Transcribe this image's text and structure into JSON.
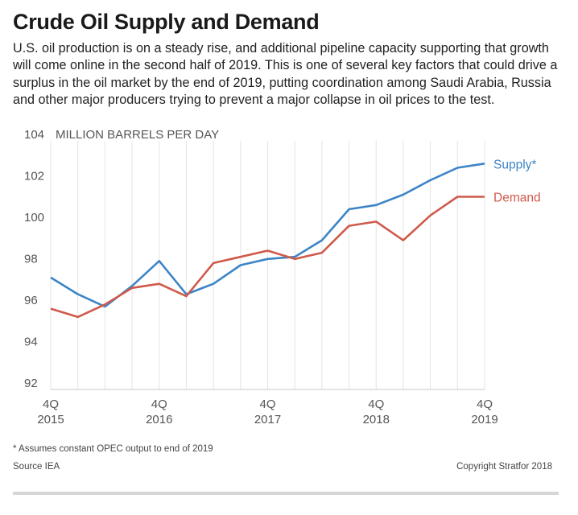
{
  "title": "Crude Oil Supply and Demand",
  "subtitle": "U.S. oil production is on a steady rise, and additional pipeline capacity supporting that growth will come online in the second half of 2019. This is one of several key factors that could drive a surplus in the oil market by the end of 2019, putting coordination among Saudi Arabia, Russia and other major producers trying to prevent a major collapse in oil prices to the test.",
  "chart_data": {
    "type": "line",
    "ylabel": "MILLION BARRELS PER DAY",
    "ylim": [
      92,
      104
    ],
    "yticks": [
      92,
      94,
      96,
      98,
      100,
      102,
      104
    ],
    "x": [
      "4Q 2015",
      "1Q 2016",
      "2Q 2016",
      "3Q 2016",
      "4Q 2016",
      "1Q 2017",
      "2Q 2017",
      "3Q 2017",
      "4Q 2017",
      "1Q 2018",
      "2Q 2018",
      "3Q 2018",
      "4Q 2018",
      "1Q 2019",
      "2Q 2019",
      "3Q 2019",
      "4Q 2019"
    ],
    "xticks": [
      {
        "index": 0,
        "line1": "4Q",
        "line2": "2015"
      },
      {
        "index": 4,
        "line1": "4Q",
        "line2": "2016"
      },
      {
        "index": 8,
        "line1": "4Q",
        "line2": "2017"
      },
      {
        "index": 12,
        "line1": "4Q",
        "line2": "2018"
      },
      {
        "index": 16,
        "line1": "4Q",
        "line2": "2019"
      }
    ],
    "grid": "vertical",
    "series": [
      {
        "name": "Supply*",
        "color": "#3d85c6",
        "values": [
          97.4,
          96.6,
          96.0,
          97.0,
          98.2,
          96.6,
          97.1,
          98.0,
          98.3,
          98.4,
          99.2,
          100.7,
          100.9,
          101.4,
          102.1,
          102.7,
          102.9
        ]
      },
      {
        "name": "Demand",
        "color": "#cf5a4b",
        "values": [
          95.9,
          95.5,
          96.1,
          96.9,
          97.1,
          96.5,
          98.1,
          98.4,
          98.7,
          98.3,
          98.6,
          99.9,
          100.1,
          99.2,
          100.4,
          101.3,
          101.3
        ]
      }
    ]
  },
  "footnote": "* Assumes constant OPEC output to end of 2019",
  "source": "Source IEA",
  "copyright": "Copyright Stratfor 2018"
}
